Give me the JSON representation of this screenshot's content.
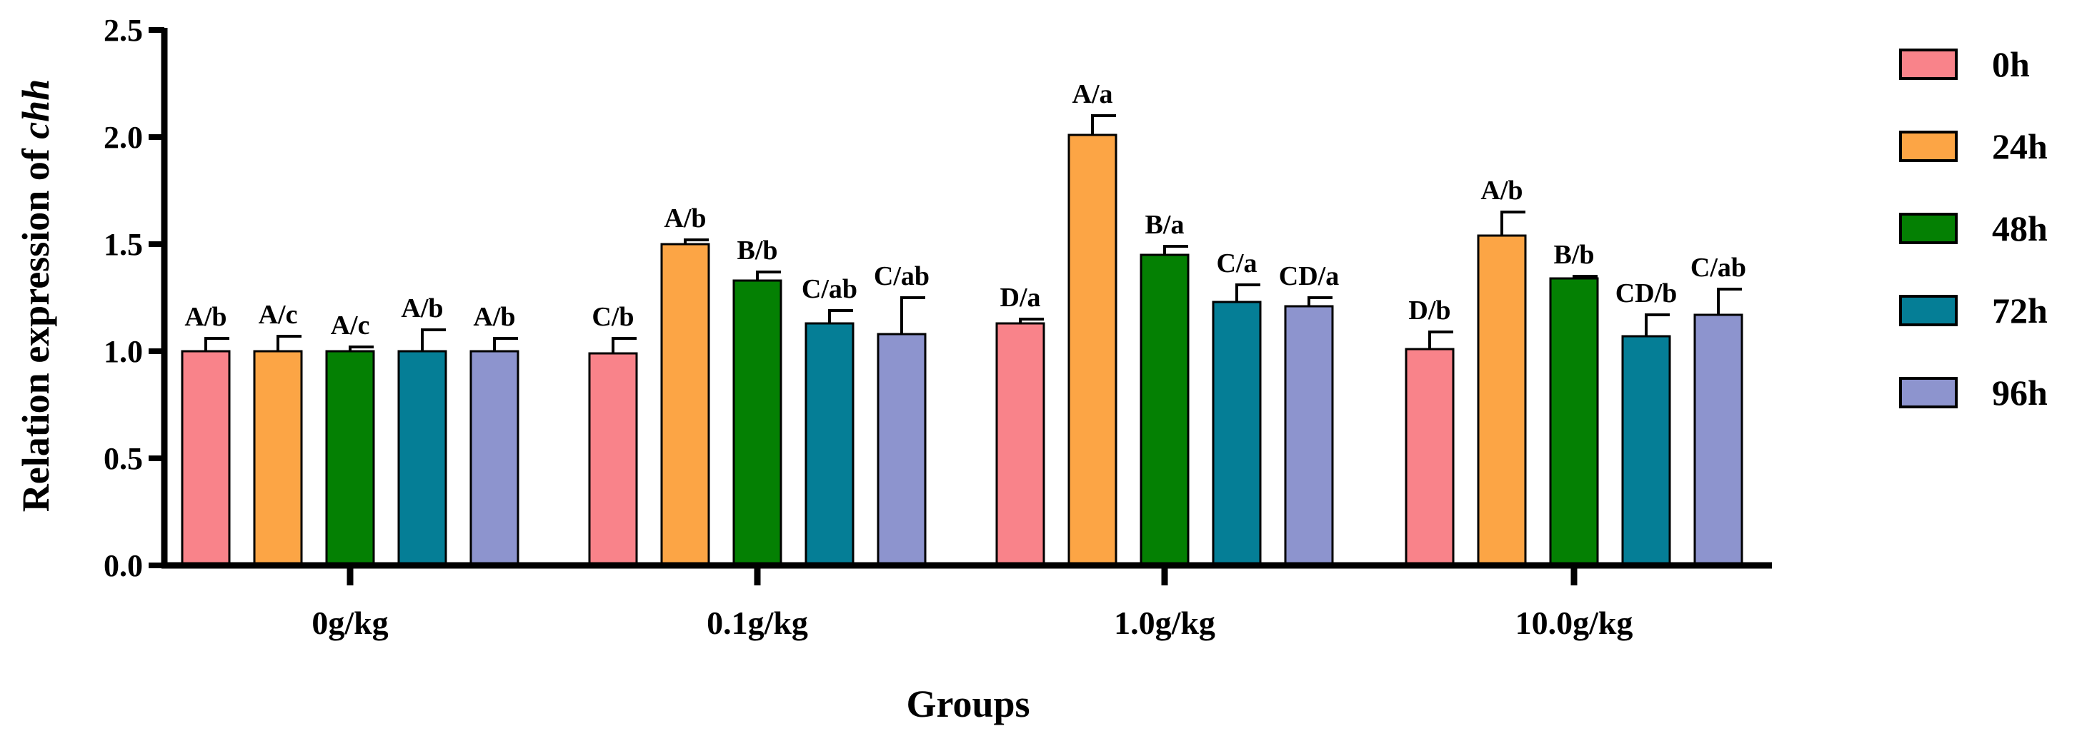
{
  "chart_data": {
    "type": "bar",
    "title": "",
    "xlabel": "Groups",
    "ylabel_prefix": "Relation expression of ",
    "ylabel_gene": "chh",
    "ylim": [
      0,
      2.5
    ],
    "yticks": [
      "0.0",
      "0.5",
      "1.0",
      "1.5",
      "2.0",
      "2.5"
    ],
    "categories": [
      "0g/kg",
      "0.1g/kg",
      "1.0g/kg",
      "10.0g/kg"
    ],
    "legend_position": "right",
    "series": [
      {
        "name": "0h",
        "color": "#F9838A",
        "values": [
          1.0,
          0.99,
          1.13,
          1.01
        ],
        "errors": [
          0.06,
          0.07,
          0.02,
          0.08
        ],
        "labels": [
          "A/b",
          "C/b",
          "D/a",
          "D/b"
        ]
      },
      {
        "name": "24h",
        "color": "#FCA545",
        "values": [
          1.0,
          1.5,
          2.01,
          1.54
        ],
        "errors": [
          0.07,
          0.02,
          0.09,
          0.11
        ],
        "labels": [
          "A/c",
          "A/b",
          "A/a",
          "A/b"
        ]
      },
      {
        "name": "48h",
        "color": "#048003",
        "values": [
          1.0,
          1.33,
          1.45,
          1.34
        ],
        "errors": [
          0.02,
          0.04,
          0.04,
          0.01
        ],
        "labels": [
          "A/c",
          "B/b",
          "B/a",
          "B/b"
        ]
      },
      {
        "name": "72h",
        "color": "#057E96",
        "values": [
          1.0,
          1.13,
          1.23,
          1.07
        ],
        "errors": [
          0.1,
          0.06,
          0.08,
          0.1
        ],
        "labels": [
          "A/b",
          "C/ab",
          "C/a",
          "CD/b"
        ]
      },
      {
        "name": "96h",
        "color": "#8D94CE",
        "values": [
          1.0,
          1.08,
          1.21,
          1.17
        ],
        "errors": [
          0.06,
          0.17,
          0.04,
          0.12
        ],
        "labels": [
          "A/b",
          "C/ab",
          "CD/a",
          "C/ab"
        ]
      }
    ]
  }
}
